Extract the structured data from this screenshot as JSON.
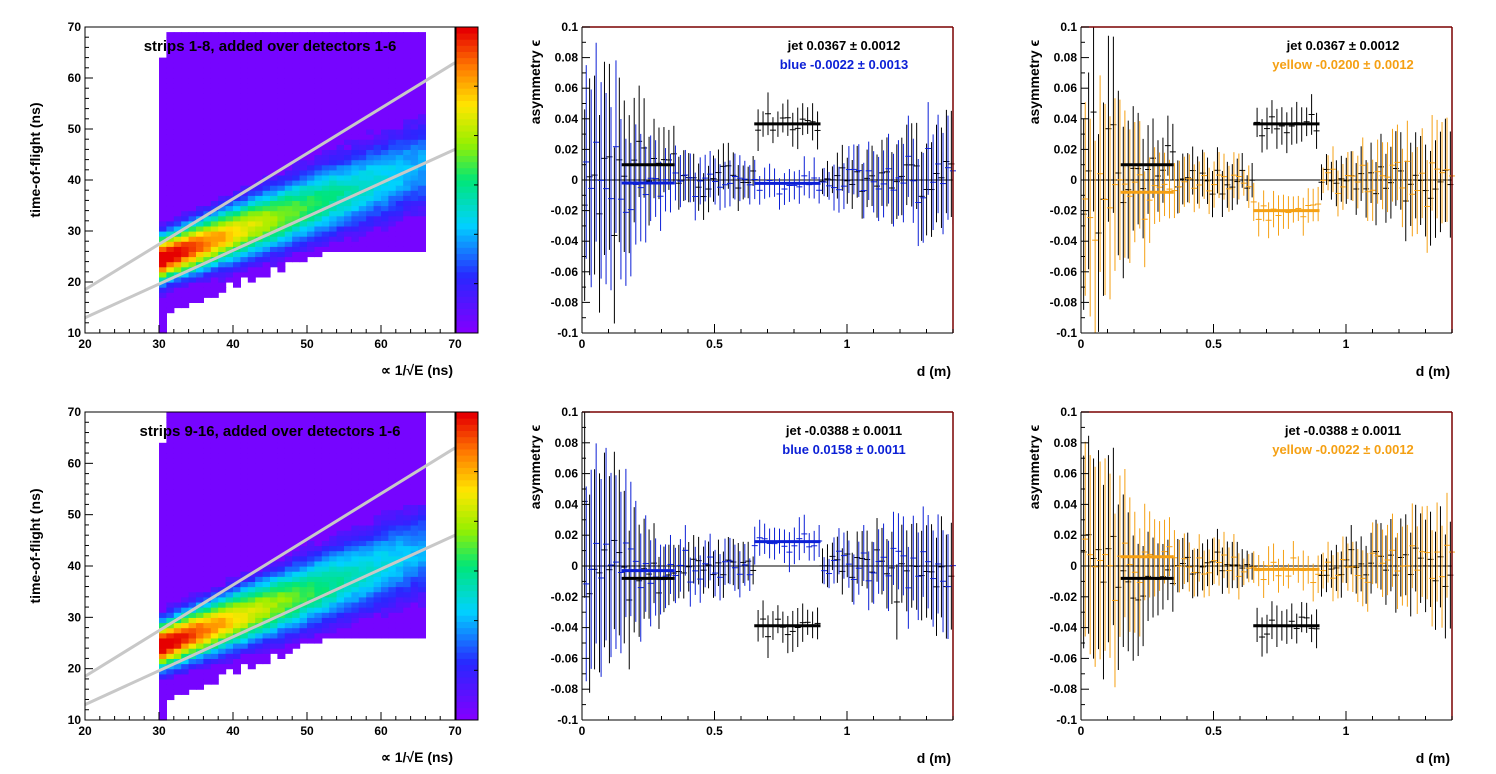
{
  "colors": {
    "jet": "#000000",
    "blue": "#0b1fd6",
    "yellow": "#f5a013",
    "cut_line": "#c8c8c8",
    "frame": "#7a0000",
    "axis": "#000000"
  },
  "chart_data": [
    {
      "type": "heatmap",
      "title": "strips 1-8, added over detectors 1-6",
      "xlabel": "∝ 1/√E (ns)",
      "ylabel": "time-of-flight (ns)",
      "xlim": [
        20,
        70
      ],
      "ylim": [
        10,
        70
      ],
      "xticks": [
        "20",
        "30",
        "40",
        "50",
        "60",
        "70"
      ],
      "yticks": [
        "10",
        "20",
        "30",
        "40",
        "50",
        "60",
        "70"
      ],
      "colorbar": "rainbow, blue (low) to red (high)",
      "cut_lines": [
        {
          "x": [
            20,
            70
          ],
          "y": [
            18.5,
            63
          ]
        },
        {
          "x": [
            20,
            70
          ],
          "y": [
            13,
            46
          ]
        }
      ]
    },
    {
      "type": "scatter",
      "ylabel": "asymmetry ϵ",
      "xlabel": "d (m)",
      "xlim": [
        0,
        1.4
      ],
      "ylim": [
        -0.1,
        0.1
      ],
      "xticks": [
        "0",
        "0.5",
        "1"
      ],
      "yticks": [
        "-0.1",
        "-0.08",
        "-0.06",
        "-0.04",
        "-0.02",
        "0",
        "0.02",
        "0.04",
        "0.06",
        "0.08",
        "0.1"
      ],
      "legend": [
        {
          "name": "jet",
          "text": "jet  0.0367 ± 0.0012",
          "value": 0.0367,
          "error": 0.0012,
          "color": "#000000"
        },
        {
          "name": "blue",
          "text": "blue -0.0022 ± 0.0013",
          "value": -0.0022,
          "error": 0.0013,
          "color": "#0b1fd6"
        }
      ],
      "fits": [
        {
          "series": "jet",
          "x": [
            0.15,
            0.35
          ],
          "y": 0.01
        },
        {
          "series": "jet",
          "x": [
            0.65,
            0.9
          ],
          "y": 0.0367
        },
        {
          "series": "blue",
          "x": [
            0.15,
            0.35
          ],
          "y": -0.002
        },
        {
          "series": "blue",
          "x": [
            0.65,
            0.9
          ],
          "y": -0.0022
        }
      ]
    },
    {
      "type": "scatter",
      "ylabel": "asymmetry ϵ",
      "xlabel": "d (m)",
      "xlim": [
        0,
        1.4
      ],
      "ylim": [
        -0.1,
        0.1
      ],
      "xticks": [
        "0",
        "0.5",
        "1"
      ],
      "yticks": [
        "-0.1",
        "-0.08",
        "-0.06",
        "-0.04",
        "-0.02",
        "0",
        "0.02",
        "0.04",
        "0.06",
        "0.08",
        "0.1"
      ],
      "legend": [
        {
          "name": "jet",
          "text": "jet  0.0367 ± 0.0012",
          "value": 0.0367,
          "error": 0.0012,
          "color": "#000000"
        },
        {
          "name": "yellow",
          "text": "yellow -0.0200 ± 0.0012",
          "value": -0.02,
          "error": 0.0012,
          "color": "#f5a013"
        }
      ],
      "fits": [
        {
          "series": "jet",
          "x": [
            0.15,
            0.35
          ],
          "y": 0.01
        },
        {
          "series": "jet",
          "x": [
            0.65,
            0.9
          ],
          "y": 0.0367
        },
        {
          "series": "yellow",
          "x": [
            0.15,
            0.35
          ],
          "y": -0.008
        },
        {
          "series": "yellow",
          "x": [
            0.65,
            0.9
          ],
          "y": -0.02
        }
      ]
    },
    {
      "type": "heatmap",
      "title": "strips 9-16, added over detectors 1-6",
      "xlabel": "∝ 1/√E (ns)",
      "ylabel": "time-of-flight (ns)",
      "xlim": [
        20,
        70
      ],
      "ylim": [
        10,
        70
      ],
      "xticks": [
        "20",
        "30",
        "40",
        "50",
        "60",
        "70"
      ],
      "yticks": [
        "10",
        "20",
        "30",
        "40",
        "50",
        "60",
        "70"
      ],
      "colorbar": "rainbow, blue (low) to red (high)",
      "cut_lines": [
        {
          "x": [
            20,
            70
          ],
          "y": [
            18.5,
            63
          ]
        },
        {
          "x": [
            20,
            70
          ],
          "y": [
            13,
            46
          ]
        }
      ]
    },
    {
      "type": "scatter",
      "ylabel": "asymmetry ϵ",
      "xlabel": "d (m)",
      "xlim": [
        0,
        1.4
      ],
      "ylim": [
        -0.1,
        0.1
      ],
      "xticks": [
        "0",
        "0.5",
        "1"
      ],
      "yticks": [
        "-0.1",
        "-0.08",
        "-0.06",
        "-0.04",
        "-0.02",
        "0",
        "0.02",
        "0.04",
        "0.06",
        "0.08",
        "0.1"
      ],
      "legend": [
        {
          "name": "jet",
          "text": "jet -0.0388 ± 0.0011",
          "value": -0.0388,
          "error": 0.0011,
          "color": "#000000"
        },
        {
          "name": "blue",
          "text": "blue  0.0158 ± 0.0011",
          "value": 0.0158,
          "error": 0.0011,
          "color": "#0b1fd6"
        }
      ],
      "fits": [
        {
          "series": "jet",
          "x": [
            0.15,
            0.35
          ],
          "y": -0.008
        },
        {
          "series": "jet",
          "x": [
            0.65,
            0.9
          ],
          "y": -0.0388
        },
        {
          "series": "blue",
          "x": [
            0.15,
            0.35
          ],
          "y": -0.003
        },
        {
          "series": "blue",
          "x": [
            0.65,
            0.9
          ],
          "y": 0.0158
        }
      ]
    },
    {
      "type": "scatter",
      "ylabel": "asymmetry ϵ",
      "xlabel": "d (m)",
      "xlim": [
        0,
        1.4
      ],
      "ylim": [
        -0.1,
        0.1
      ],
      "xticks": [
        "0",
        "0.5",
        "1"
      ],
      "yticks": [
        "-0.1",
        "-0.08",
        "-0.06",
        "-0.04",
        "-0.02",
        "0",
        "0.02",
        "0.04",
        "0.06",
        "0.08",
        "0.1"
      ],
      "legend": [
        {
          "name": "jet",
          "text": "jet -0.0388 ± 0.0011",
          "value": -0.0388,
          "error": 0.0011,
          "color": "#000000"
        },
        {
          "name": "yellow",
          "text": "yellow -0.0022 ± 0.0012",
          "value": -0.0022,
          "error": 0.0012,
          "color": "#f5a013"
        }
      ],
      "fits": [
        {
          "series": "jet",
          "x": [
            0.15,
            0.35
          ],
          "y": -0.008
        },
        {
          "series": "jet",
          "x": [
            0.65,
            0.9
          ],
          "y": -0.0388
        },
        {
          "series": "yellow",
          "x": [
            0.15,
            0.35
          ],
          "y": 0.006
        },
        {
          "series": "yellow",
          "x": [
            0.65,
            0.9
          ],
          "y": -0.0022
        }
      ]
    }
  ]
}
